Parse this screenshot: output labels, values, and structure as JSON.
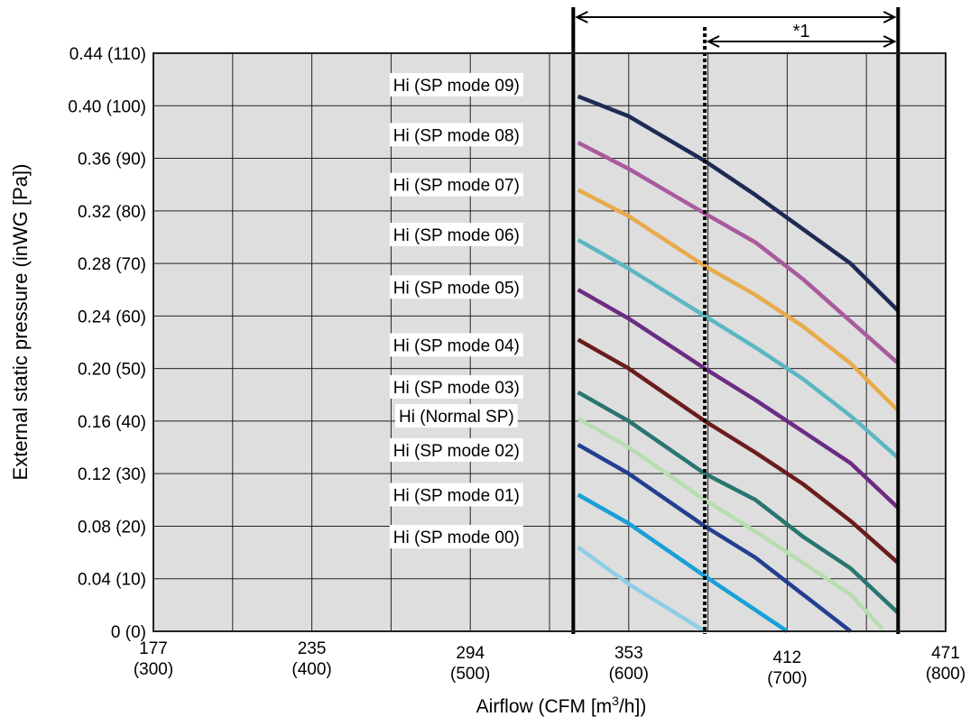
{
  "chart_data": {
    "type": "line",
    "xlabel_prefix": "Airflow (CFM [m",
    "xlabel_sup": "3",
    "xlabel_suffix": "/h])",
    "ylabel": "External static pressure (inWG [Pa])",
    "xlim": [
      300,
      800
    ],
    "ylim": [
      0,
      110
    ],
    "x_ticks": [
      {
        "value": 300,
        "cfm": "177",
        "m3h": "(300)"
      },
      {
        "value": 400,
        "cfm": "235",
        "m3h": "(400)"
      },
      {
        "value": 500,
        "cfm": "294",
        "m3h": "(500)"
      },
      {
        "value": 600,
        "cfm": "353",
        "m3h": "(600)"
      },
      {
        "value": 700,
        "cfm": "412",
        "m3h": "(700)"
      },
      {
        "value": 800,
        "cfm": "471",
        "m3h": "(800)"
      }
    ],
    "y_ticks": [
      {
        "value": 0,
        "label": "0 (0)"
      },
      {
        "value": 10,
        "label": "0.04 (10)"
      },
      {
        "value": 20,
        "label": "0.08 (20)"
      },
      {
        "value": 30,
        "label": "0.12 (30)"
      },
      {
        "value": 40,
        "label": "0.16 (40)"
      },
      {
        "value": 50,
        "label": "0.20 (50)"
      },
      {
        "value": 60,
        "label": "0.24 (60)"
      },
      {
        "value": 70,
        "label": "0.28 (70)"
      },
      {
        "value": 80,
        "label": "0.32 (80)"
      },
      {
        "value": 90,
        "label": "0.36 (90)"
      },
      {
        "value": 100,
        "label": "0.40 (100)"
      },
      {
        "value": 110,
        "label": "0.44 (110)"
      }
    ],
    "grid": true,
    "x_minor_grid": [
      550
    ],
    "range_lines": [
      565,
      648,
      770
    ],
    "range_annotation": "*1",
    "series": [
      {
        "name": "Hi (SP mode 09)",
        "color": "#1f2a55",
        "label_x": 440,
        "label_y": 104,
        "x": [
          568,
          600,
          648,
          680,
          710,
          740,
          770
        ],
        "y": [
          101.8,
          98,
          89.5,
          83,
          76.5,
          70,
          61
        ]
      },
      {
        "name": "Hi (SP mode 08)",
        "color": "#a95a9e",
        "label_x": 440,
        "label_y": 94.5,
        "x": [
          568,
          600,
          648,
          680,
          710,
          740,
          770
        ],
        "y": [
          93,
          88,
          79.5,
          74,
          67,
          59,
          51
        ]
      },
      {
        "name": "Hi (SP mode 07)",
        "color": "#e8ab4b",
        "label_x": 440,
        "label_y": 85,
        "x": [
          568,
          600,
          648,
          680,
          710,
          740,
          770
        ],
        "y": [
          84,
          79,
          69.5,
          64,
          58,
          51,
          42
        ]
      },
      {
        "name": "Hi (SP mode 06)",
        "color": "#5bb7c3",
        "label_x": 440,
        "label_y": 75.5,
        "x": [
          568,
          600,
          648,
          680,
          710,
          740,
          770
        ],
        "y": [
          74.5,
          69,
          60,
          54,
          48,
          41,
          33
        ]
      },
      {
        "name": "Hi (SP mode 05)",
        "color": "#6d2b83",
        "label_x": 440,
        "label_y": 65.5,
        "x": [
          568,
          600,
          648,
          680,
          710,
          740,
          770
        ],
        "y": [
          65,
          59.5,
          50,
          44,
          38,
          32,
          23.5
        ]
      },
      {
        "name": "Hi (SP mode 04)",
        "color": "#6b1c1c",
        "label_x": 440,
        "label_y": 54.5,
        "x": [
          568,
          600,
          648,
          680,
          710,
          740,
          770
        ],
        "y": [
          55.5,
          50,
          40,
          34,
          28,
          21,
          13
        ]
      },
      {
        "name": "Hi (SP mode 03)",
        "color": "#2a7570",
        "label_x": 440,
        "label_y": 46.5,
        "x": [
          568,
          600,
          648,
          680,
          710,
          740,
          770
        ],
        "y": [
          45.5,
          40,
          30,
          25,
          18,
          12,
          3.5
        ]
      },
      {
        "name": "Hi (Normal SP)",
        "color": "#b7ddb0",
        "label_x": 440,
        "label_y": 41,
        "x": [
          568,
          600,
          648,
          680,
          710,
          740,
          760
        ],
        "y": [
          40.5,
          35,
          25,
          19,
          13,
          7,
          0.5
        ]
      },
      {
        "name": "Hi (SP mode 02)",
        "color": "#233f91",
        "label_x": 440,
        "label_y": 34.5,
        "x": [
          568,
          600,
          648,
          680,
          710,
          740
        ],
        "y": [
          35.5,
          30,
          20,
          14,
          7,
          0
        ]
      },
      {
        "name": "Hi (SP mode 01)",
        "color": "#19a0d8",
        "label_x": 440,
        "label_y": 26,
        "x": [
          568,
          600,
          648,
          700
        ],
        "y": [
          26,
          20.5,
          10.5,
          0
        ]
      },
      {
        "name": "Hi (SP mode 00)",
        "color": "#8ecde6",
        "label_x": 440,
        "label_y": 18,
        "x": [
          568,
          600,
          648
        ],
        "y": [
          16,
          9,
          0
        ]
      }
    ]
  }
}
